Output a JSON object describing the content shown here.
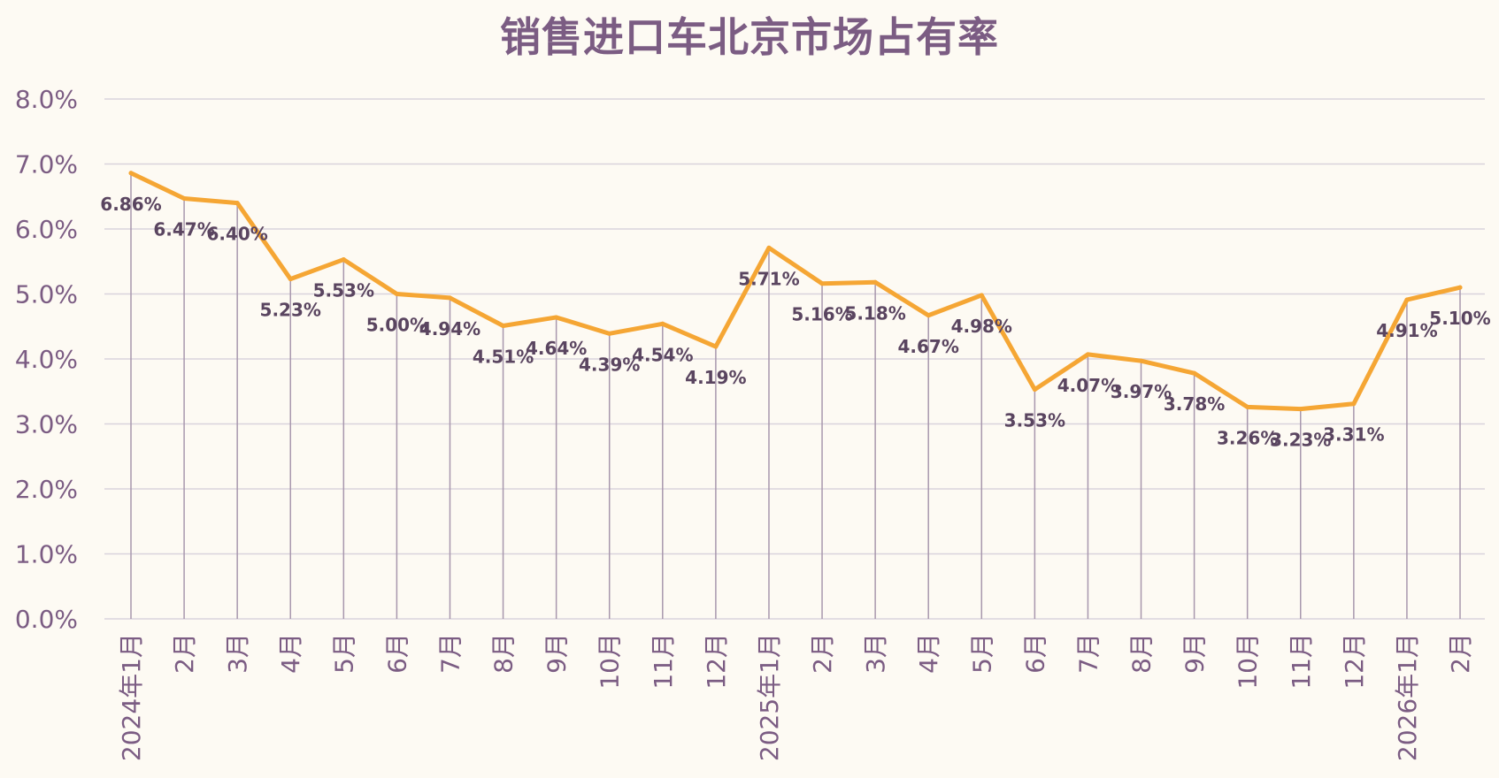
{
  "chart_data": {
    "type": "line",
    "title": "销售进口车北京市场占有率",
    "categories": [
      "2024年1月",
      "2月",
      "3月",
      "4月",
      "5月",
      "6月",
      "7月",
      "8月",
      "9月",
      "10月",
      "11月",
      "12月",
      "2025年1月",
      "2月",
      "3月",
      "4月",
      "5月",
      "6月",
      "7月",
      "8月",
      "9月",
      "10月",
      "11月",
      "12月",
      "2026年1月",
      "2月"
    ],
    "series": [
      {
        "values": [
          6.86,
          6.47,
          6.4,
          5.23,
          5.53,
          5.0,
          4.94,
          4.51,
          4.64,
          4.39,
          4.54,
          4.19,
          5.71,
          5.16,
          5.18,
          4.67,
          4.98,
          3.53,
          4.07,
          3.97,
          3.78,
          3.26,
          3.23,
          3.31,
          4.91,
          5.1
        ]
      }
    ],
    "data_labels": [
      "6.86%",
      "6.47%",
      "6.40%",
      "5.23%",
      "5.53%",
      "5.00%",
      "4.94%",
      "4.51%",
      "4.64%",
      "4.39%",
      "4.54%",
      "4.19%",
      "5.71%",
      "5.16%",
      "5.18%",
      "4.67%",
      "4.98%",
      "3.53%",
      "4.07%",
      "3.97%",
      "3.78%",
      "3.26%",
      "3.23%",
      "3.31%",
      "4.91%",
      "5.10%"
    ],
    "yticks": [
      "0.0%",
      "1.0%",
      "2.0%",
      "3.0%",
      "4.0%",
      "5.0%",
      "6.0%",
      "7.0%",
      "8.0%"
    ],
    "ylim": [
      0,
      8
    ],
    "xlabel": "",
    "ylabel": "",
    "grid": true,
    "drop_lines": true,
    "legend": "none",
    "colors": {
      "line": "#f5a634",
      "grid": "#d9d3dc",
      "drop_line": "#a897ad",
      "text": "#7b5c83",
      "label_text": "#5a4560",
      "background": "#fdfaf3"
    }
  }
}
